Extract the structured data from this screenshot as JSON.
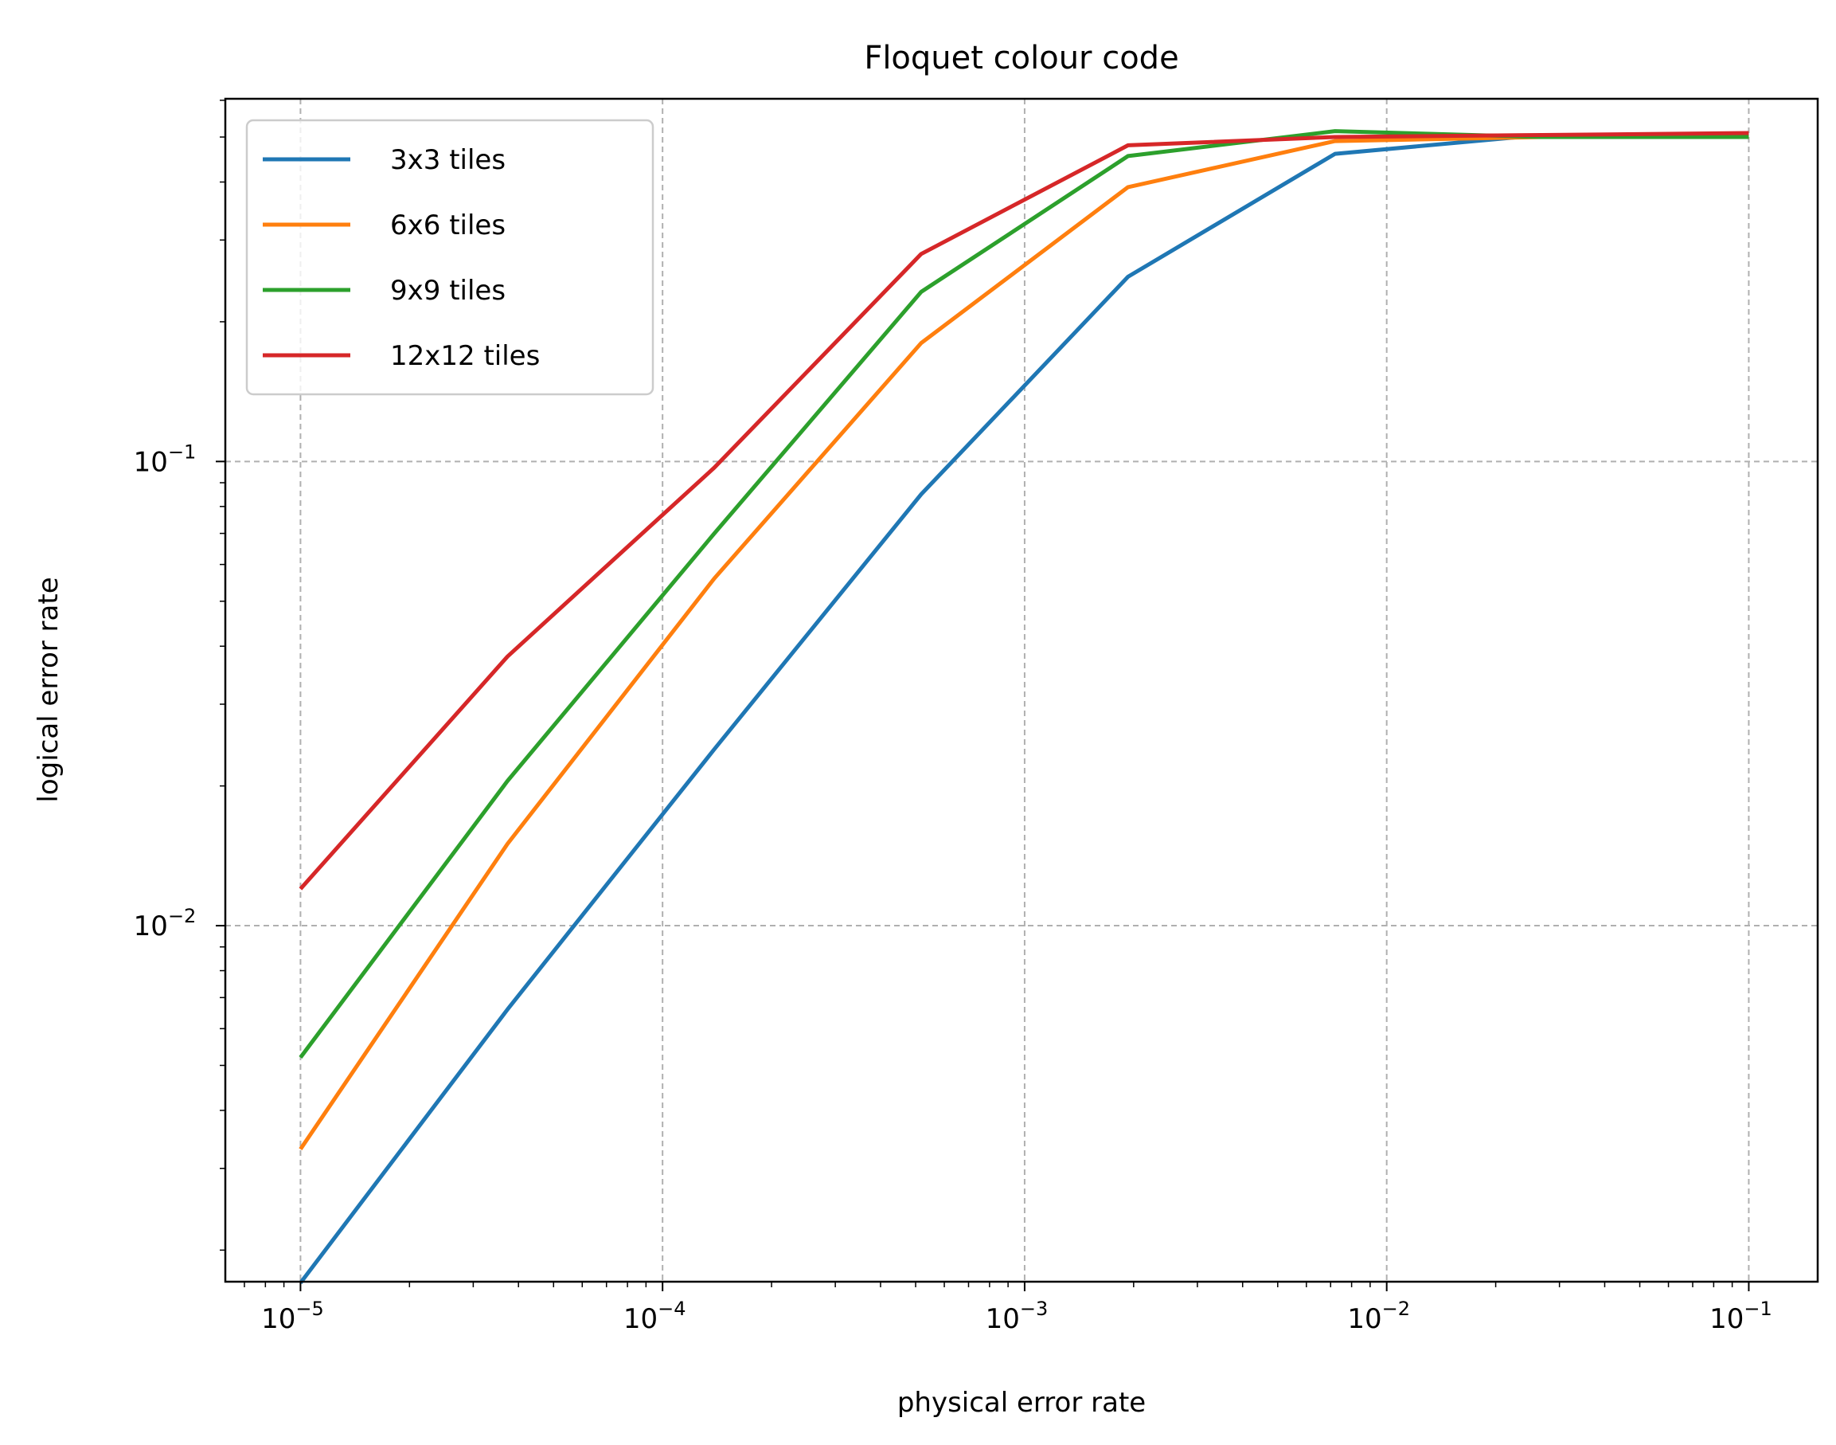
{
  "chart_data": {
    "type": "line",
    "title": "Floquet colour code",
    "xlabel": "physical error rate",
    "ylabel": "logical error rate",
    "xscale": "log",
    "yscale": "log",
    "xlim": [
      6.2e-06,
      0.155
    ],
    "ylim": [
      0.00171,
      0.6045
    ],
    "grid": true,
    "legend_position": "upper-left",
    "x": [
      1e-05,
      3.73e-05,
      0.000139,
      0.000518,
      0.00193,
      0.0072,
      0.0268,
      0.1
    ],
    "x_ticks": [
      {
        "value": 1e-05,
        "base": "10",
        "exp": "−5"
      },
      {
        "value": 0.0001,
        "base": "10",
        "exp": "−4"
      },
      {
        "value": 0.001,
        "base": "10",
        "exp": "−3"
      },
      {
        "value": 0.01,
        "base": "10",
        "exp": "−2"
      },
      {
        "value": 0.1,
        "base": "10",
        "exp": "−1"
      }
    ],
    "y_ticks": [
      {
        "value": 0.1,
        "base": "10",
        "exp": "−1"
      },
      {
        "value": 0.01,
        "base": "10",
        "exp": "−2"
      }
    ],
    "series": [
      {
        "name": "3x3 tiles",
        "color": "#1f77b4",
        "values": [
          0.0017,
          0.0066,
          0.024,
          0.085,
          0.25,
          0.46,
          0.505,
          0.505
        ]
      },
      {
        "name": "6x6 tiles",
        "color": "#ff7f0e",
        "values": [
          0.0033,
          0.015,
          0.056,
          0.18,
          0.39,
          0.49,
          0.5,
          0.5
        ]
      },
      {
        "name": "9x9 tiles",
        "color": "#2ca02c",
        "values": [
          0.0052,
          0.0205,
          0.07,
          0.232,
          0.455,
          0.515,
          0.5,
          0.5
        ]
      },
      {
        "name": "12x12 tiles",
        "color": "#d62728",
        "values": [
          0.012,
          0.038,
          0.097,
          0.28,
          0.48,
          0.5,
          0.505,
          0.51
        ]
      }
    ]
  }
}
